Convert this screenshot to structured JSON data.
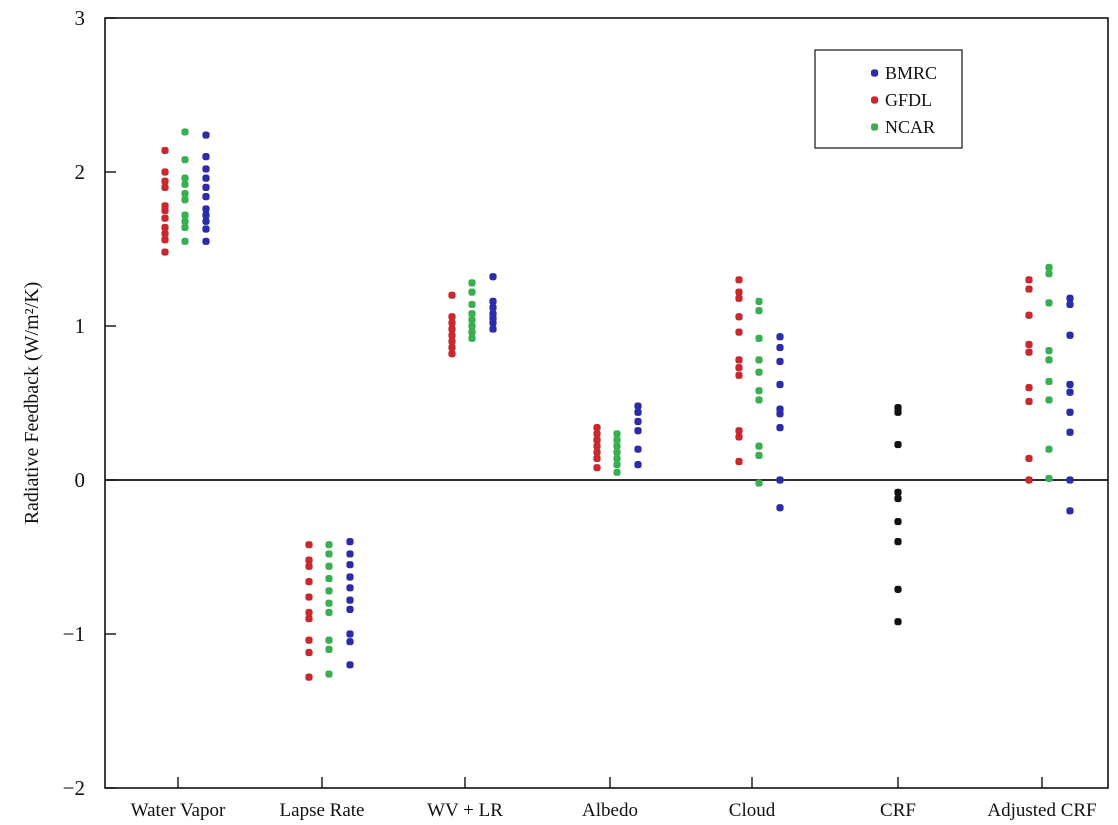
{
  "chart_data": {
    "type": "scatter",
    "title": "",
    "xlabel": "",
    "ylabel": "Radiative Feedback (W/m²/K)",
    "ylim": [
      -2,
      3
    ],
    "yticks": [
      -2,
      -1,
      0,
      1,
      2,
      3
    ],
    "grid": false,
    "zero_line": true,
    "legend_position": "top-right",
    "categories": [
      "Water Vapor",
      "Lapse Rate",
      "WV + LR",
      "Albedo",
      "Cloud",
      "CRF",
      "Adjusted CRF"
    ],
    "series": [
      {
        "name": "BMRC",
        "color": "#2c2ca8",
        "values": [
          [
            2.24,
            2.1,
            2.02,
            1.96,
            1.9,
            1.84,
            1.76,
            1.72,
            1.68,
            1.63,
            1.55
          ],
          [
            -0.4,
            -0.48,
            -0.55,
            -0.63,
            -0.7,
            -0.78,
            -0.84,
            -1.0,
            -1.05,
            -1.2
          ],
          [
            1.32,
            1.16,
            1.12,
            1.08,
            1.05,
            1.02,
            0.98
          ],
          [
            0.48,
            0.44,
            0.38,
            0.32,
            0.2,
            0.1
          ],
          [
            0.93,
            0.86,
            0.77,
            0.62,
            0.46,
            0.43,
            0.34,
            0.0,
            -0.18
          ],
          [],
          [
            1.18,
            1.14,
            0.94,
            0.62,
            0.57,
            0.44,
            0.31,
            0.0,
            -0.2
          ]
        ]
      },
      {
        "name": "GFDL",
        "color": "#c8282e",
        "values": [
          [
            2.14,
            2.0,
            1.94,
            1.9,
            1.78,
            1.75,
            1.7,
            1.64,
            1.6,
            1.56,
            1.48
          ],
          [
            -0.42,
            -0.52,
            -0.56,
            -0.66,
            -0.76,
            -0.86,
            -0.9,
            -1.04,
            -1.12,
            -1.28
          ],
          [
            1.2,
            1.06,
            1.02,
            0.98,
            0.94,
            0.9,
            0.86,
            0.82
          ],
          [
            0.34,
            0.3,
            0.26,
            0.22,
            0.18,
            0.14,
            0.08
          ],
          [
            1.3,
            1.22,
            1.18,
            1.06,
            0.96,
            0.78,
            0.73,
            0.68,
            0.32,
            0.28,
            0.12
          ],
          [],
          [
            1.3,
            1.24,
            1.07,
            0.88,
            0.83,
            0.6,
            0.51,
            0.14,
            0.0
          ]
        ]
      },
      {
        "name": "NCAR",
        "color": "#3cae52",
        "values": [
          [
            2.26,
            2.08,
            1.96,
            1.92,
            1.86,
            1.82,
            1.72,
            1.68,
            1.64,
            1.55
          ],
          [
            -0.42,
            -0.48,
            -0.56,
            -0.64,
            -0.72,
            -0.8,
            -0.86,
            -1.04,
            -1.1,
            -1.26
          ],
          [
            1.28,
            1.22,
            1.14,
            1.08,
            1.04,
            1.0,
            0.96,
            0.92
          ],
          [
            0.3,
            0.26,
            0.22,
            0.18,
            0.14,
            0.1,
            0.05
          ],
          [
            1.16,
            1.1,
            0.92,
            0.78,
            0.7,
            0.58,
            0.52,
            0.22,
            0.16,
            -0.02
          ],
          [],
          [
            1.38,
            1.34,
            1.15,
            0.84,
            0.78,
            0.64,
            0.52,
            0.2,
            0.01
          ]
        ]
      },
      {
        "name": "",
        "color": "#111111",
        "values": [
          [],
          [],
          [],
          [],
          [],
          [
            0.47,
            0.44,
            0.23,
            -0.08,
            -0.12,
            -0.27,
            -0.4,
            -0.71,
            -0.92
          ],
          []
        ]
      }
    ]
  }
}
